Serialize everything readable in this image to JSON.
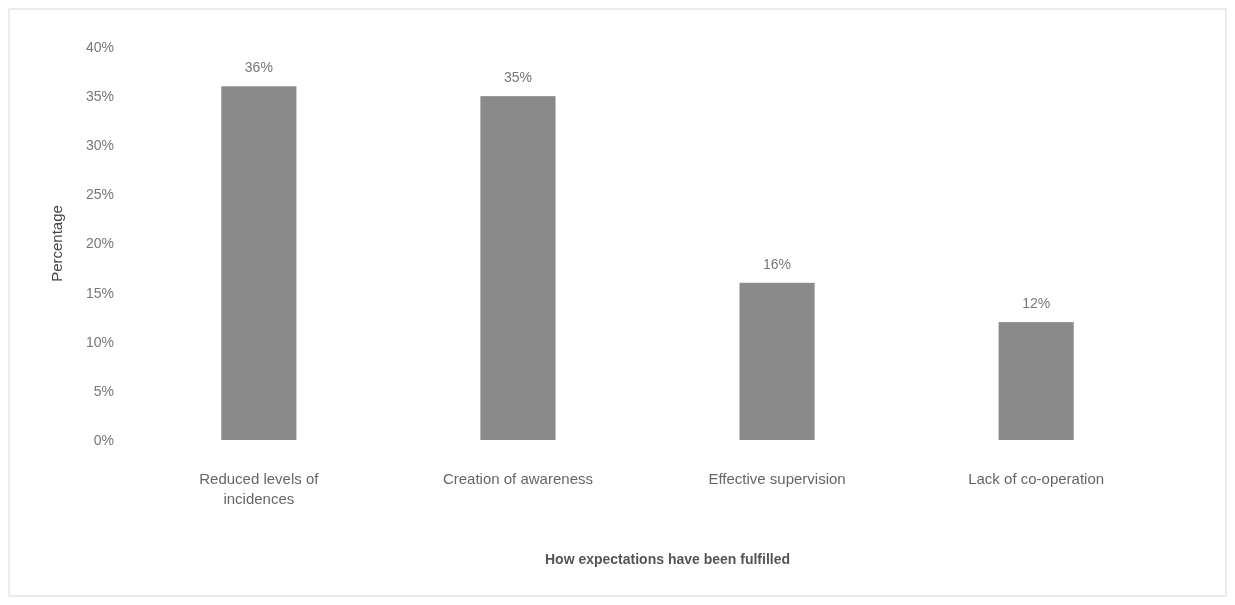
{
  "chart_data": {
    "type": "bar",
    "xlabel": "How expectations have been fulfilled",
    "ylabel": "Percentage",
    "categories": [
      "Reduced levels of incidences",
      "Creation of awareness",
      "Effective supervision",
      "Lack of co-operation"
    ],
    "values": [
      36,
      35,
      16,
      12
    ],
    "value_labels": [
      "36%",
      "35%",
      "16%",
      "12%"
    ],
    "color": "#8a8a8a",
    "ylim": [
      0,
      40
    ],
    "yticks": [
      {
        "value": 0,
        "label": "0%"
      },
      {
        "value": 5,
        "label": "5%"
      },
      {
        "value": 10,
        "label": "10%"
      },
      {
        "value": 15,
        "label": "15%"
      },
      {
        "value": 20,
        "label": "20%"
      },
      {
        "value": 25,
        "label": "25%"
      },
      {
        "value": 30,
        "label": "30%"
      },
      {
        "value": 35,
        "label": "35%"
      },
      {
        "value": 40,
        "label": "40%"
      }
    ],
    "grid": false
  }
}
